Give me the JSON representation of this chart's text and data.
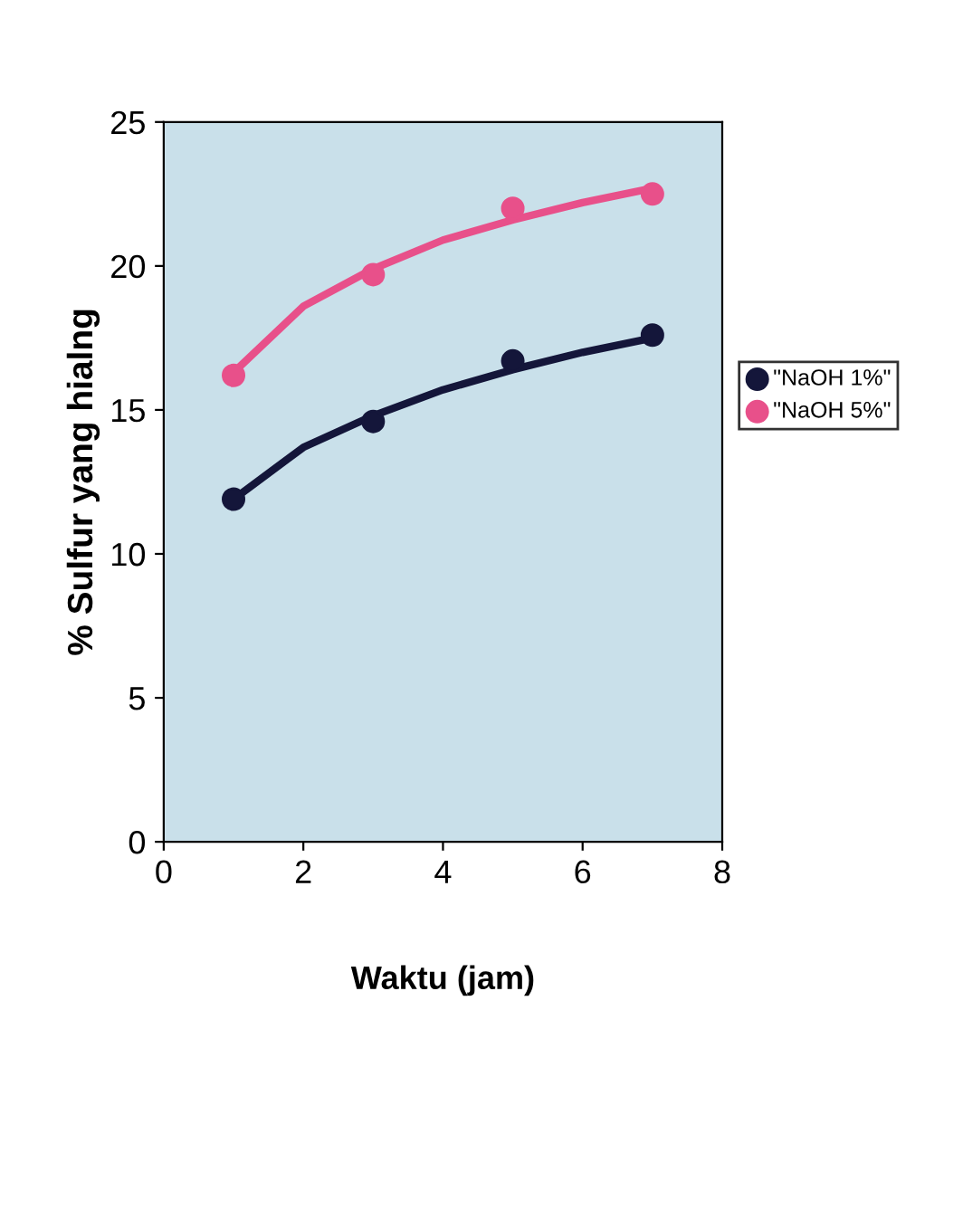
{
  "chart_data": {
    "type": "scatter",
    "xlabel": "Waktu (jam)",
    "ylabel": "% Sulfur yang hialng",
    "xlim": [
      0,
      8
    ],
    "xticks": [
      0,
      2,
      4,
      6,
      8
    ],
    "ylim": [
      0,
      25
    ],
    "yticks": [
      0,
      5,
      10,
      15,
      20,
      25
    ],
    "grid": false,
    "legend": "right",
    "series": [
      {
        "name": "\"NaOH 1%\"",
        "marker": "circle",
        "color": "#14163a",
        "x": [
          1,
          3,
          5,
          7
        ],
        "values": [
          11.9,
          14.6,
          16.7,
          17.6
        ]
      },
      {
        "name": "\"NaOH 5%\"",
        "marker": "circle",
        "color": "#e8508a",
        "x": [
          1,
          3,
          5,
          7
        ],
        "values": [
          16.2,
          19.7,
          22.0,
          22.5
        ]
      },
      {
        "type": "line",
        "marker": "none",
        "color": "#14163a",
        "x": [
          1,
          2,
          3,
          4,
          5,
          6,
          7
        ],
        "values": [
          11.9,
          13.7,
          14.8,
          15.7,
          16.4,
          17.0,
          17.5
        ]
      },
      {
        "type": "line",
        "marker": "none",
        "color": "#e8508a",
        "x": [
          1,
          2,
          3,
          4,
          5,
          6,
          7
        ],
        "values": [
          16.3,
          18.6,
          19.9,
          20.9,
          21.6,
          22.2,
          22.7
        ]
      }
    ]
  }
}
